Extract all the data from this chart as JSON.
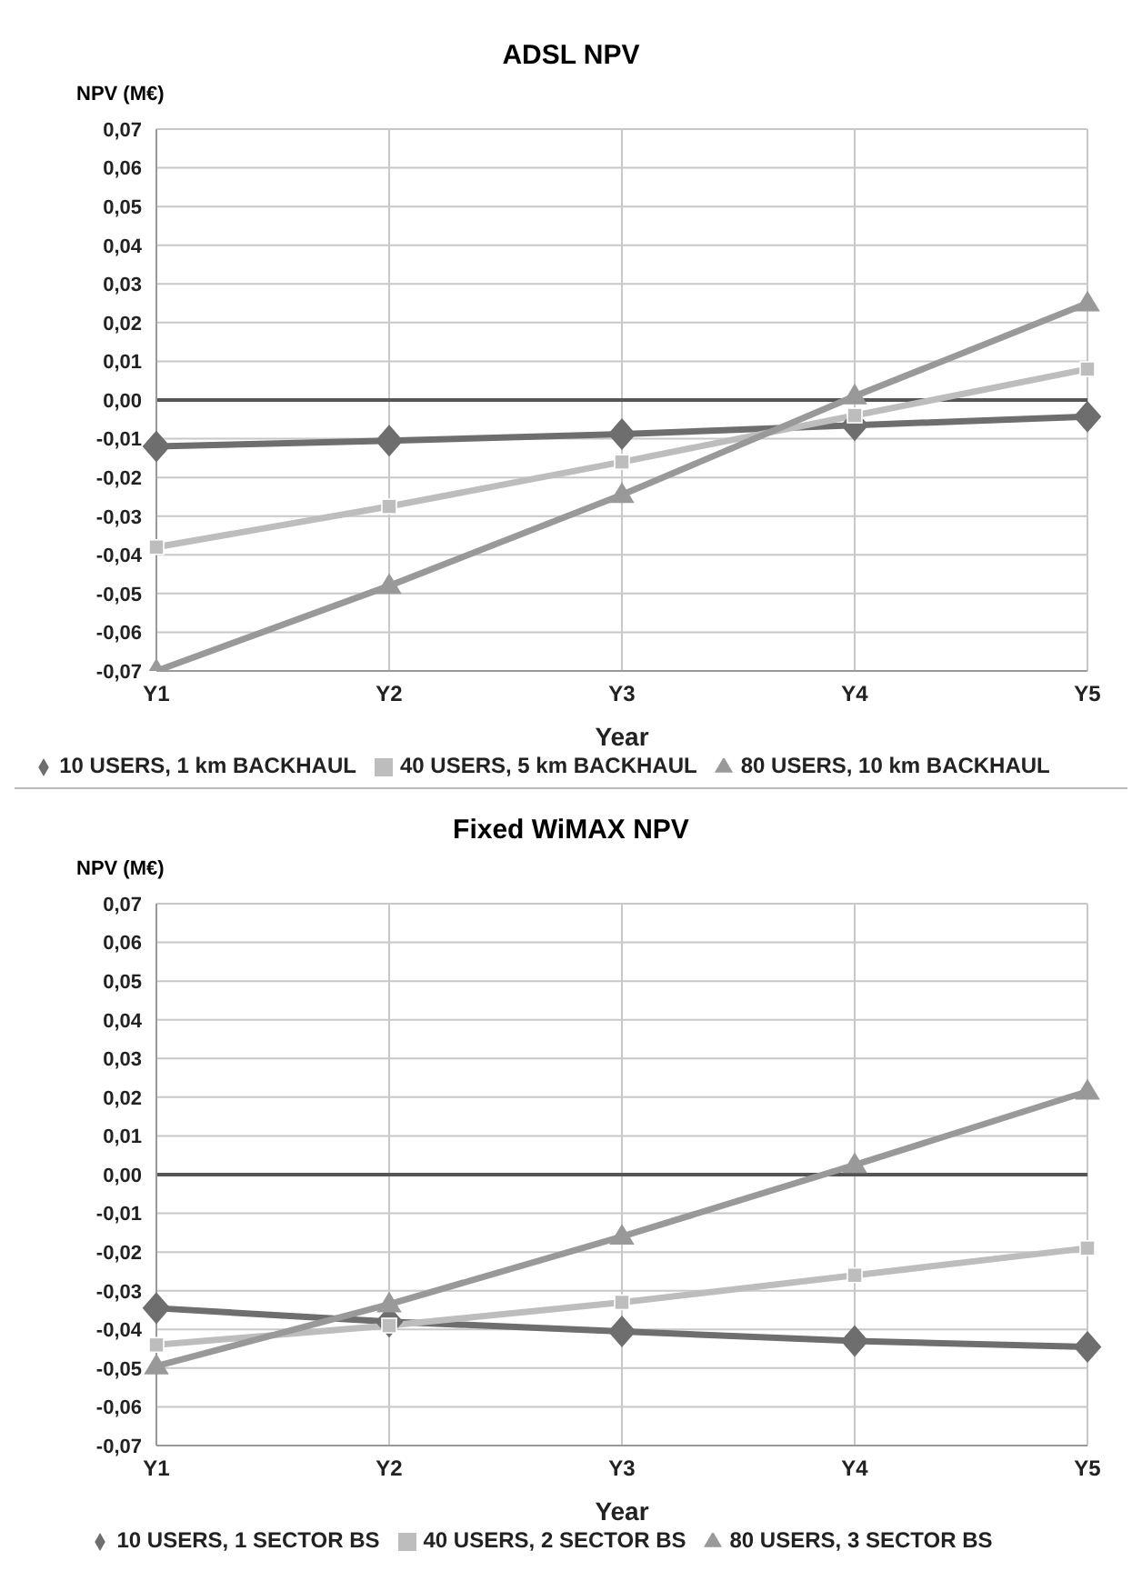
{
  "chart_data": [
    {
      "type": "line",
      "title": "ADSL NPV",
      "xlabel": "Year",
      "ylabel": "NPV (M€)",
      "categories": [
        "Y1",
        "Y2",
        "Y3",
        "Y4",
        "Y5"
      ],
      "series": [
        {
          "name": "10 USERS, 1 km BACKHAUL",
          "color": "#6e6e6e",
          "marker": "diamond",
          "values": [
            -0.012,
            -0.0105,
            -0.0088,
            -0.0065,
            -0.0043
          ]
        },
        {
          "name": "40 USERS, 5 km BACKHAUL",
          "color": "#bdbdbd",
          "marker": "square",
          "values": [
            -0.038,
            -0.0275,
            -0.016,
            -0.004,
            0.008
          ]
        },
        {
          "name": "80 USERS, 10 km BACKHAUL",
          "color": "#999999",
          "marker": "triangle",
          "values": [
            -0.07,
            -0.048,
            -0.0245,
            0.001,
            0.025
          ]
        }
      ],
      "ylim": [
        -0.07,
        0.07
      ],
      "yticks": [
        {
          "value": -0.07,
          "label": "-0,07"
        },
        {
          "value": -0.06,
          "label": "-0,06"
        },
        {
          "value": -0.05,
          "label": "-0,05"
        },
        {
          "value": -0.04,
          "label": "-0,04"
        },
        {
          "value": -0.03,
          "label": "-0,03"
        },
        {
          "value": -0.02,
          "label": "-0,02"
        },
        {
          "value": -0.01,
          "label": "-0,01"
        },
        {
          "value": 0,
          "label": "0,00"
        },
        {
          "value": 0.01,
          "label": "0,01"
        },
        {
          "value": 0.02,
          "label": "0,02"
        },
        {
          "value": 0.03,
          "label": "0,03"
        },
        {
          "value": 0.04,
          "label": "0,04"
        },
        {
          "value": 0.05,
          "label": "0,05"
        },
        {
          "value": 0.06,
          "label": "0,06"
        },
        {
          "value": 0.07,
          "label": "0,07"
        }
      ],
      "ref_lines": [
        {
          "axis": "y",
          "value": 0,
          "color": "#555555"
        }
      ],
      "grid": true,
      "legend": "bottom"
    },
    {
      "type": "line",
      "title": "Fixed WiMAX NPV",
      "xlabel": "Year",
      "ylabel": "NPV (M€)",
      "categories": [
        "Y1",
        "Y2",
        "Y3",
        "Y4",
        "Y5"
      ],
      "series": [
        {
          "name": "10 USERS, 1 SECTOR BS",
          "color": "#6e6e6e",
          "marker": "diamond",
          "values": [
            -0.0345,
            -0.038,
            -0.0405,
            -0.043,
            -0.0445
          ]
        },
        {
          "name": "40 USERS, 2 SECTOR BS",
          "color": "#bdbdbd",
          "marker": "square",
          "values": [
            -0.044,
            -0.039,
            -0.033,
            -0.026,
            -0.019
          ]
        },
        {
          "name": "80 USERS, 3 SECTOR BS",
          "color": "#999999",
          "marker": "triangle",
          "values": [
            -0.0495,
            -0.0335,
            -0.016,
            0.0025,
            0.0215
          ]
        }
      ],
      "ylim": [
        -0.07,
        0.07
      ],
      "yticks": [
        {
          "value": -0.07,
          "label": "-0,07"
        },
        {
          "value": -0.06,
          "label": "-0,06"
        },
        {
          "value": -0.05,
          "label": "-0,05"
        },
        {
          "value": -0.04,
          "label": "-0,04"
        },
        {
          "value": -0.03,
          "label": "-0,03"
        },
        {
          "value": -0.02,
          "label": "-0,02"
        },
        {
          "value": -0.01,
          "label": "-0,01"
        },
        {
          "value": 0,
          "label": "0,00"
        },
        {
          "value": 0.01,
          "label": "0,01"
        },
        {
          "value": 0.02,
          "label": "0,02"
        },
        {
          "value": 0.03,
          "label": "0,03"
        },
        {
          "value": 0.04,
          "label": "0,04"
        },
        {
          "value": 0.05,
          "label": "0,05"
        },
        {
          "value": 0.06,
          "label": "0,06"
        },
        {
          "value": 0.07,
          "label": "0,07"
        }
      ],
      "ref_lines": [
        {
          "axis": "y",
          "value": 0,
          "color": "#555555"
        }
      ],
      "grid": true,
      "legend": "bottom"
    }
  ]
}
